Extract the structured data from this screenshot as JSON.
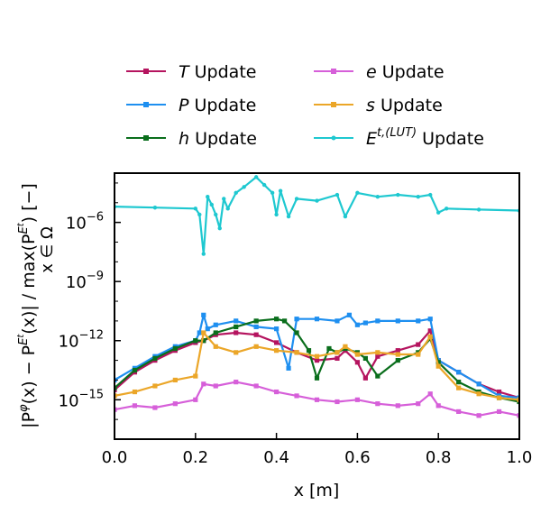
{
  "chart_data": {
    "type": "line",
    "title": "",
    "xlabel": "x [m]",
    "ylabel": "|P^φ(x) − P^{E^t}(x)| / max_{x∈Ω}(P^{E^t}) [−]",
    "ylabel_parts": {
      "lhs": "|P",
      "lhs_sup": "φ",
      "mid": "(x) − P",
      "mid_sup": "E",
      "mid_supsup": "t",
      "rhs": "(x)| / max(P",
      "rhs_sup": "E",
      "rhs_supsup": "t",
      "tail": ") [−]",
      "max_sub": "x ∈ Ω"
    },
    "x_scale": "linear",
    "y_scale": "log",
    "xlim": [
      0.0,
      1.0
    ],
    "ylim_log10": [
      -17.0,
      -3.5
    ],
    "x_ticks": [
      {
        "value": 0.0,
        "label": "0.0"
      },
      {
        "value": 0.2,
        "label": "0.2"
      },
      {
        "value": 0.4,
        "label": "0.4"
      },
      {
        "value": 0.6,
        "label": "0.6"
      },
      {
        "value": 0.8,
        "label": "0.8"
      },
      {
        "value": 1.0,
        "label": "1.0"
      }
    ],
    "y_ticks": [
      {
        "exp": -6,
        "base": "10",
        "sup": "−6"
      },
      {
        "exp": -9,
        "base": "10",
        "sup": "−9"
      },
      {
        "exp": -12,
        "base": "10",
        "sup": "−12"
      },
      {
        "exp": -15,
        "base": "10",
        "sup": "−15"
      }
    ],
    "grid": false,
    "legend_position": "top, two columns above the plot",
    "series": [
      {
        "name": "T Update",
        "label_var": "T",
        "label_rest": " Update",
        "color": "#b5145f",
        "marker": "square",
        "legend_col": 0,
        "legend_row": 0,
        "x": [
          0.0,
          0.05,
          0.1,
          0.15,
          0.2,
          0.22,
          0.25,
          0.3,
          0.35,
          0.4,
          0.45,
          0.5,
          0.55,
          0.57,
          0.6,
          0.62,
          0.65,
          0.7,
          0.75,
          0.78,
          0.8,
          0.85,
          0.9,
          0.95,
          1.0
        ],
        "log10_y": [
          -14.5,
          -13.6,
          -13.0,
          -12.5,
          -12.1,
          -12.0,
          -11.7,
          -11.6,
          -11.7,
          -12.1,
          -12.6,
          -13.0,
          -12.9,
          -12.5,
          -13.1,
          -13.9,
          -12.8,
          -12.5,
          -12.2,
          -11.5,
          -13.0,
          -13.6,
          -14.2,
          -14.6,
          -14.9
        ]
      },
      {
        "name": "P Update",
        "label_var": "P",
        "label_rest": " Update",
        "color": "#1e8ff0",
        "marker": "square",
        "legend_col": 0,
        "legend_row": 1,
        "x": [
          0.0,
          0.05,
          0.1,
          0.15,
          0.2,
          0.21,
          0.22,
          0.23,
          0.25,
          0.3,
          0.35,
          0.4,
          0.43,
          0.45,
          0.5,
          0.55,
          0.58,
          0.6,
          0.62,
          0.65,
          0.7,
          0.75,
          0.78,
          0.8,
          0.85,
          0.9,
          0.95,
          1.0
        ],
        "log10_y": [
          -14.0,
          -13.4,
          -12.8,
          -12.3,
          -12.0,
          -11.6,
          -10.7,
          -11.4,
          -11.2,
          -11.0,
          -11.3,
          -11.4,
          -13.4,
          -10.9,
          -10.9,
          -11.0,
          -10.7,
          -11.2,
          -11.1,
          -11.0,
          -11.0,
          -11.0,
          -10.9,
          -13.0,
          -13.6,
          -14.2,
          -14.8,
          -14.9
        ]
      },
      {
        "name": "h Update",
        "label_var": "h",
        "label_rest": " Update",
        "color": "#0a6e1c",
        "marker": "square",
        "legend_col": 0,
        "legend_row": 2,
        "x": [
          0.0,
          0.05,
          0.1,
          0.15,
          0.2,
          0.22,
          0.25,
          0.3,
          0.35,
          0.4,
          0.42,
          0.45,
          0.48,
          0.5,
          0.53,
          0.55,
          0.57,
          0.6,
          0.62,
          0.65,
          0.7,
          0.75,
          0.78,
          0.8,
          0.85,
          0.9,
          0.95,
          1.0
        ],
        "log10_y": [
          -14.4,
          -13.5,
          -12.9,
          -12.4,
          -12.0,
          -12.0,
          -11.6,
          -11.3,
          -11.0,
          -10.9,
          -11.0,
          -11.6,
          -12.5,
          -13.9,
          -12.4,
          -12.6,
          -12.4,
          -12.6,
          -12.9,
          -13.8,
          -13.0,
          -12.6,
          -11.9,
          -13.1,
          -14.1,
          -14.6,
          -14.9,
          -15.1
        ]
      },
      {
        "name": "e Update",
        "label_var": "e",
        "label_rest": " Update",
        "color": "#d65fd9",
        "marker": "square",
        "legend_col": 1,
        "legend_row": 0,
        "x": [
          0.0,
          0.05,
          0.1,
          0.15,
          0.2,
          0.22,
          0.25,
          0.3,
          0.35,
          0.4,
          0.45,
          0.5,
          0.55,
          0.6,
          0.65,
          0.7,
          0.75,
          0.78,
          0.8,
          0.85,
          0.9,
          0.95,
          1.0
        ],
        "log10_y": [
          -15.5,
          -15.3,
          -15.4,
          -15.2,
          -15.0,
          -14.2,
          -14.3,
          -14.1,
          -14.3,
          -14.6,
          -14.8,
          -15.0,
          -15.1,
          -15.0,
          -15.2,
          -15.3,
          -15.2,
          -14.7,
          -15.3,
          -15.6,
          -15.8,
          -15.6,
          -15.8
        ]
      },
      {
        "name": "s Update",
        "label_var": "s",
        "label_rest": " Update",
        "color": "#eba628",
        "marker": "square",
        "legend_col": 1,
        "legend_row": 1,
        "x": [
          0.0,
          0.05,
          0.1,
          0.15,
          0.2,
          0.22,
          0.25,
          0.3,
          0.35,
          0.4,
          0.45,
          0.5,
          0.55,
          0.57,
          0.6,
          0.65,
          0.7,
          0.75,
          0.78,
          0.8,
          0.85,
          0.9,
          0.95,
          1.0
        ],
        "log10_y": [
          -14.8,
          -14.6,
          -14.3,
          -14.0,
          -13.8,
          -11.6,
          -12.3,
          -12.6,
          -12.3,
          -12.5,
          -12.6,
          -12.8,
          -12.6,
          -12.3,
          -12.7,
          -12.6,
          -12.7,
          -12.7,
          -11.8,
          -13.3,
          -14.4,
          -14.7,
          -14.9,
          -15.0
        ]
      },
      {
        "name": "E^{t,(LUT)} Update",
        "label_var": "E",
        "label_sup": "t,(LUT)",
        "label_rest": " Update",
        "color": "#1ec8d0",
        "marker": "dot",
        "legend_col": 1,
        "legend_row": 2,
        "x": [
          0.0,
          0.1,
          0.2,
          0.21,
          0.22,
          0.23,
          0.24,
          0.25,
          0.26,
          0.27,
          0.28,
          0.3,
          0.32,
          0.35,
          0.37,
          0.39,
          0.4,
          0.41,
          0.43,
          0.45,
          0.5,
          0.55,
          0.57,
          0.6,
          0.65,
          0.7,
          0.75,
          0.78,
          0.8,
          0.82,
          0.9,
          1.0
        ],
        "log10_y": [
          -5.2,
          -5.25,
          -5.3,
          -5.6,
          -7.6,
          -4.7,
          -5.1,
          -5.6,
          -6.3,
          -4.8,
          -5.3,
          -4.5,
          -4.2,
          -3.7,
          -4.1,
          -4.5,
          -5.6,
          -4.4,
          -5.7,
          -4.8,
          -4.9,
          -4.6,
          -5.7,
          -4.5,
          -4.7,
          -4.6,
          -4.7,
          -4.6,
          -5.5,
          -5.3,
          -5.35,
          -5.4
        ]
      }
    ]
  }
}
